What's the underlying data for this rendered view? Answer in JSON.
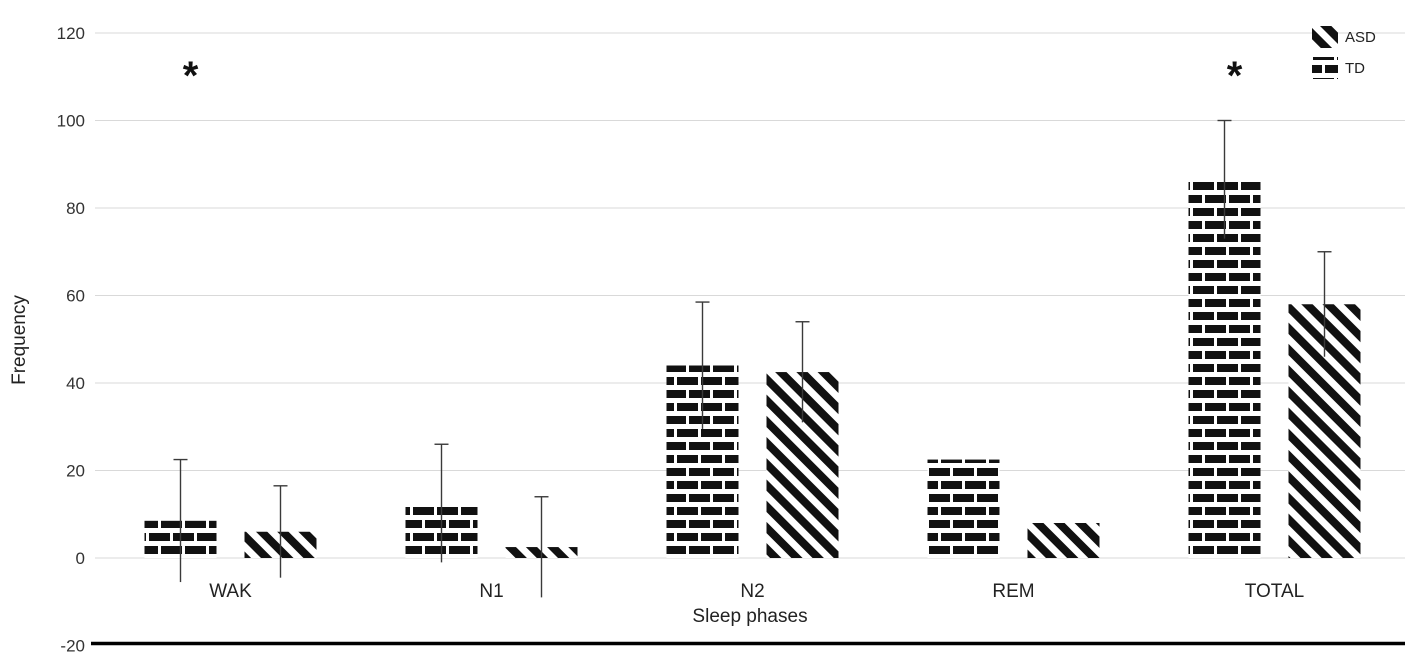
{
  "chart_data": {
    "type": "bar",
    "title": "",
    "xlabel": "Sleep phases",
    "ylabel": "Frequency",
    "ylim": [
      -20,
      120
    ],
    "yticks": [
      120,
      100,
      80,
      60,
      40,
      20,
      0,
      -20
    ],
    "grid": true,
    "categories": [
      "WAK",
      "N1",
      "N2",
      "REM",
      "TOTAL"
    ],
    "series": [
      {
        "name": "TD",
        "pattern": "horizontal-stripes",
        "values": [
          8.5,
          12.5,
          44,
          22.5,
          86.5
        ],
        "error": [
          14,
          13.5,
          14.5,
          0,
          13.5
        ]
      },
      {
        "name": "ASD",
        "pattern": "diagonal-stripes",
        "values": [
          6,
          2.5,
          42.5,
          8,
          58
        ],
        "error": [
          10.5,
          11.5,
          11.5,
          0,
          12
        ]
      }
    ],
    "legend": {
      "position": "top-right",
      "entries": [
        {
          "label": "ASD",
          "pattern": "diagonal-stripes"
        },
        {
          "label": "TD",
          "pattern": "horizontal-stripes"
        }
      ]
    },
    "annotations": [
      {
        "text": "*",
        "category": "WAK",
        "y": 110
      },
      {
        "text": "*",
        "category": "TOTAL",
        "y": 110
      }
    ],
    "colors": {
      "bar": "#111111",
      "gridline": "#d9d9d9",
      "axis_text": "#333333",
      "baseline": "#000000",
      "error_bar": "#3a3a3a"
    }
  }
}
